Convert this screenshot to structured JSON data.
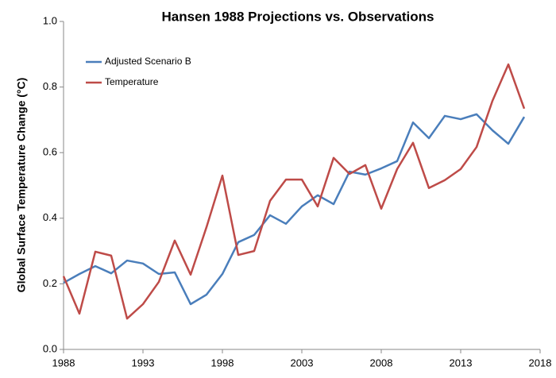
{
  "chart_data": {
    "type": "line",
    "title": "Hansen 1988 Projections vs. Observations",
    "y_label": "Global Surface Temperature Change (°C)",
    "x": [
      1988,
      1989,
      1990,
      1991,
      1992,
      1993,
      1994,
      1995,
      1996,
      1997,
      1998,
      1999,
      2000,
      2001,
      2002,
      2003,
      2004,
      2005,
      2006,
      2007,
      2008,
      2009,
      2010,
      2011,
      2012,
      2013,
      2014,
      2015,
      2016,
      2017
    ],
    "series": [
      {
        "name": "Adjusted Scenario B",
        "color": "#4a7ebb",
        "values": [
          0.203,
          0.23,
          0.254,
          0.232,
          0.271,
          0.262,
          0.23,
          0.235,
          0.138,
          0.167,
          0.23,
          0.327,
          0.349,
          0.409,
          0.383,
          0.436,
          0.47,
          0.443,
          0.542,
          0.533,
          0.552,
          0.574,
          0.692,
          0.644,
          0.712,
          0.702,
          0.717,
          0.668,
          0.627,
          0.709
        ]
      },
      {
        "name": "Temperature",
        "color": "#be4b48",
        "values": [
          0.223,
          0.109,
          0.298,
          0.286,
          0.094,
          0.138,
          0.206,
          0.332,
          0.228,
          0.373,
          0.53,
          0.288,
          0.3,
          0.453,
          0.518,
          0.518,
          0.436,
          0.584,
          0.535,
          0.562,
          0.429,
          0.55,
          0.63,
          0.492,
          0.516,
          0.55,
          0.617,
          0.758,
          0.869,
          0.734
        ]
      }
    ],
    "xlim": [
      1988,
      2018
    ],
    "xticks": [
      1988,
      1993,
      1998,
      2003,
      2008,
      2013,
      2018
    ],
    "ylim": [
      0,
      1
    ],
    "yticks": [
      {
        "value": 0,
        "label": "0.0"
      },
      {
        "value": 0.2,
        "label": "0.2"
      },
      {
        "value": 0.4,
        "label": "0.4"
      },
      {
        "value": 0.6,
        "label": "0.6"
      },
      {
        "value": 0.8,
        "label": "0.8"
      },
      {
        "value": 1,
        "label": "1.0"
      }
    ],
    "grid": false,
    "legend": "upper left"
  }
}
